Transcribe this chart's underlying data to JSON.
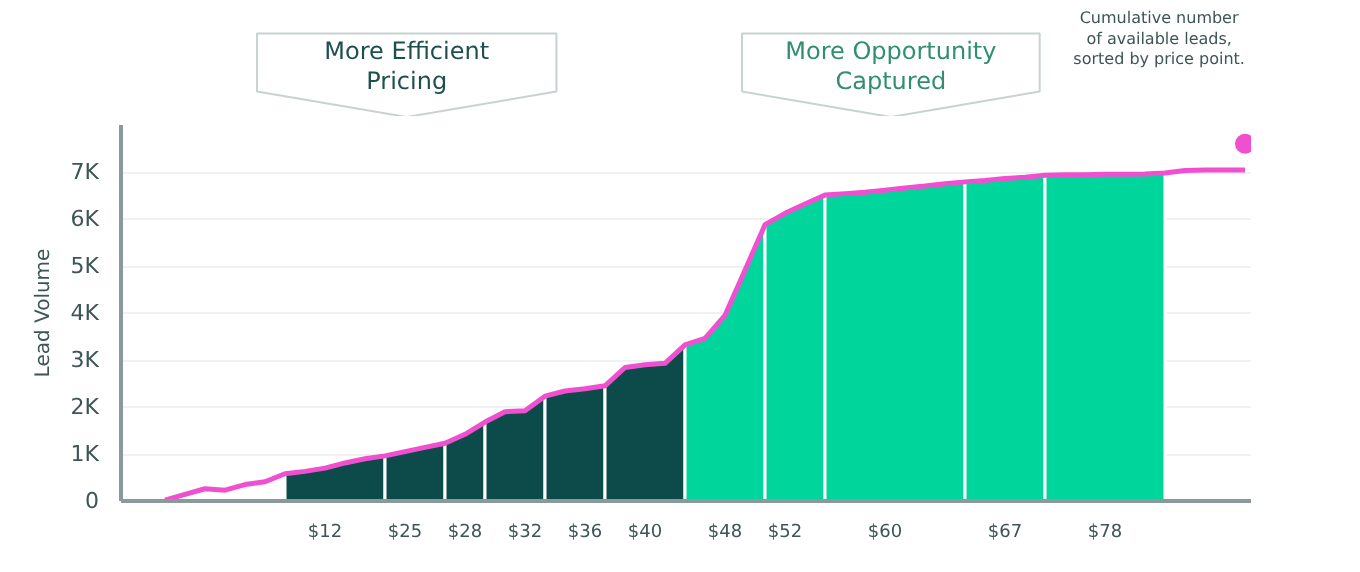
{
  "chart_data": {
    "type": "line",
    "ylabel": "Lead Volume",
    "annotations": [
      "More Efficient\nPricing",
      "More Opportunity\nCaptured",
      "Cumulative number\nof available leads,\nsorted by price point."
    ],
    "categories": [
      null,
      null,
      null,
      null,
      null,
      null,
      null,
      null,
      null,
      null,
      "$12",
      null,
      null,
      null,
      "$25",
      null,
      null,
      "$28",
      null,
      null,
      "$32",
      null,
      null,
      "$36",
      null,
      null,
      "$40",
      null,
      null,
      null,
      "$48",
      null,
      null,
      "$52",
      null,
      null,
      null,
      null,
      "$60",
      null,
      null,
      null,
      null,
      null,
      "$67",
      null,
      null,
      null,
      null,
      "$78",
      null,
      null,
      null,
      null,
      null,
      null,
      null
    ],
    "ylim": [
      0,
      8000
    ],
    "yticks": [
      {
        "value": 0,
        "label": "0"
      },
      {
        "value": 1000,
        "label": "1K"
      },
      {
        "value": 2000,
        "label": "2K"
      },
      {
        "value": 3000,
        "label": "3K"
      },
      {
        "value": 4000,
        "label": "4K"
      },
      {
        "value": 5000,
        "label": "5K"
      },
      {
        "value": 6000,
        "label": "6K"
      },
      {
        "value": 7000,
        "label": "7K"
      }
    ],
    "grid": "y",
    "series": [
      {
        "type": "area",
        "color": "#0d4a4a",
        "values": [
          null,
          null,
          null,
          null,
          null,
          null,
          null,
          null,
          580,
          630,
          700,
          810,
          900,
          960,
          null,
          null,
          null,
          null,
          null,
          null,
          null,
          null,
          null,
          null,
          null,
          null,
          null,
          null,
          null,
          null,
          null,
          null,
          null,
          null,
          null,
          null,
          null,
          null,
          null,
          null,
          null,
          null,
          null,
          null,
          null,
          null,
          null,
          null,
          null,
          null,
          null,
          null,
          null,
          null,
          null,
          null,
          null
        ]
      },
      {
        "type": "area",
        "color": "#0d4a4a",
        "values": [
          null,
          null,
          null,
          null,
          null,
          null,
          null,
          null,
          null,
          null,
          null,
          null,
          null,
          960,
          1050,
          1140,
          1230,
          null,
          null,
          null,
          null,
          null,
          null,
          null,
          null,
          null,
          null,
          null,
          null,
          null,
          null,
          null,
          null,
          null,
          null,
          null,
          null,
          null,
          null,
          null,
          null,
          null,
          null,
          null,
          null,
          null,
          null,
          null,
          null,
          null,
          null,
          null,
          null,
          null,
          null,
          null,
          null
        ]
      },
      {
        "type": "area",
        "color": "#0d4a4a",
        "values": [
          null,
          null,
          null,
          null,
          null,
          null,
          null,
          null,
          null,
          null,
          null,
          null,
          null,
          null,
          null,
          null,
          1230,
          1420,
          1680,
          null,
          null,
          null,
          null,
          null,
          null,
          null,
          null,
          null,
          null,
          null,
          null,
          null,
          null,
          null,
          null,
          null,
          null,
          null,
          null,
          null,
          null,
          null,
          null,
          null,
          null,
          null,
          null,
          null,
          null,
          null,
          null,
          null,
          null,
          null,
          null,
          null,
          null
        ]
      },
      {
        "type": "area",
        "color": "#0d4a4a",
        "values": [
          null,
          null,
          null,
          null,
          null,
          null,
          null,
          null,
          null,
          null,
          null,
          null,
          null,
          null,
          null,
          null,
          null,
          null,
          1680,
          1900,
          1920,
          2230,
          null,
          null,
          null,
          null,
          null,
          null,
          null,
          null,
          null,
          null,
          null,
          null,
          null,
          null,
          null,
          null,
          null,
          null,
          null,
          null,
          null,
          null,
          null,
          null,
          null,
          null,
          null,
          null,
          null,
          null,
          null,
          null,
          null,
          null,
          null
        ]
      },
      {
        "type": "area",
        "color": "#0d4a4a",
        "values": [
          null,
          null,
          null,
          null,
          null,
          null,
          null,
          null,
          null,
          null,
          null,
          null,
          null,
          null,
          null,
          null,
          null,
          null,
          null,
          null,
          null,
          2230,
          2340,
          2390,
          2450,
          null,
          null,
          null,
          null,
          null,
          null,
          null,
          null,
          null,
          null,
          null,
          null,
          null,
          null,
          null,
          null,
          null,
          null,
          null,
          null,
          null,
          null,
          null,
          null,
          null,
          null,
          null,
          null,
          null,
          null,
          null,
          null
        ]
      },
      {
        "type": "area",
        "color": "#0d4a4a",
        "values": [
          null,
          null,
          null,
          null,
          null,
          null,
          null,
          null,
          null,
          null,
          null,
          null,
          null,
          null,
          null,
          null,
          null,
          null,
          null,
          null,
          null,
          null,
          null,
          null,
          2450,
          2840,
          2900,
          2930,
          3320,
          null,
          null,
          null,
          null,
          null,
          null,
          null,
          null,
          null,
          null,
          null,
          null,
          null,
          null,
          null,
          null,
          null,
          null,
          null,
          null,
          null,
          null,
          null,
          null,
          null,
          null,
          null,
          null
        ]
      },
      {
        "type": "area",
        "color": "#00d69b",
        "values": [
          null,
          null,
          null,
          null,
          null,
          null,
          null,
          null,
          null,
          null,
          null,
          null,
          null,
          null,
          null,
          null,
          null,
          null,
          null,
          null,
          null,
          null,
          null,
          null,
          null,
          null,
          null,
          null,
          3320,
          3460,
          3950,
          4910,
          5880,
          null,
          null,
          null,
          null,
          null,
          null,
          null,
          null,
          null,
          null,
          null,
          null,
          null,
          null,
          null,
          null,
          null,
          null,
          null,
          null,
          null,
          null,
          null,
          null
        ]
      },
      {
        "type": "area",
        "color": "#00d69b",
        "values": [
          null,
          null,
          null,
          null,
          null,
          null,
          null,
          null,
          null,
          null,
          null,
          null,
          null,
          null,
          null,
          null,
          null,
          null,
          null,
          null,
          null,
          null,
          null,
          null,
          null,
          null,
          null,
          null,
          null,
          null,
          null,
          null,
          5880,
          6120,
          6320,
          6510,
          null,
          null,
          null,
          null,
          null,
          null,
          null,
          null,
          null,
          null,
          null,
          null,
          null,
          null,
          null,
          null,
          null,
          null,
          null,
          null,
          null
        ]
      },
      {
        "type": "area",
        "color": "#00d69b",
        "values": [
          null,
          null,
          null,
          null,
          null,
          null,
          null,
          null,
          null,
          null,
          null,
          null,
          null,
          null,
          null,
          null,
          null,
          null,
          null,
          null,
          null,
          null,
          null,
          null,
          null,
          null,
          null,
          null,
          null,
          null,
          null,
          null,
          null,
          null,
          null,
          6510,
          6540,
          6570,
          6610,
          6660,
          6700,
          6750,
          6790,
          null,
          null,
          null,
          null,
          null,
          null,
          null,
          null,
          null,
          null,
          null,
          null,
          null,
          null
        ]
      },
      {
        "type": "area",
        "color": "#00d69b",
        "values": [
          null,
          null,
          null,
          null,
          null,
          null,
          null,
          null,
          null,
          null,
          null,
          null,
          null,
          null,
          null,
          null,
          null,
          null,
          null,
          null,
          null,
          null,
          null,
          null,
          null,
          null,
          null,
          null,
          null,
          null,
          null,
          null,
          null,
          null,
          null,
          null,
          null,
          null,
          null,
          null,
          null,
          null,
          6790,
          6820,
          6860,
          6890,
          6930,
          null,
          null,
          null,
          null,
          null,
          null,
          null,
          null,
          null,
          null
        ]
      },
      {
        "type": "area",
        "color": "#00d69b",
        "values": [
          null,
          null,
          null,
          null,
          null,
          null,
          null,
          null,
          null,
          null,
          null,
          null,
          null,
          null,
          null,
          null,
          null,
          null,
          null,
          null,
          null,
          null,
          null,
          null,
          null,
          null,
          null,
          null,
          null,
          null,
          null,
          null,
          null,
          null,
          null,
          null,
          null,
          null,
          null,
          null,
          null,
          null,
          null,
          null,
          null,
          null,
          6930,
          6940,
          6940,
          6950,
          6950,
          6960,
          6980,
          null,
          null,
          null,
          null
        ]
      },
      {
        "color": "#f050d0",
        "line_style": "solid",
        "values": [
          null,
          null,
          20,
          140,
          260,
          230,
          350,
          410,
          580,
          630,
          700,
          810,
          900,
          960,
          1050,
          1140,
          1230,
          1420,
          1680,
          1900,
          1920,
          2230,
          2340,
          2390,
          2450,
          2840,
          2900,
          2930,
          3320,
          3460,
          3950,
          4910,
          5880,
          6120,
          6320,
          6510,
          6540,
          6570,
          6610,
          6660,
          6700,
          6750,
          6790,
          6820,
          6860,
          6890,
          6930,
          6940,
          6940,
          6950,
          6950,
          6960,
          6980,
          7030,
          7040,
          7040,
          7040
        ]
      },
      {
        "type": "scatter",
        "color": "#f050d0",
        "marker": "circle",
        "values": [
          null,
          null,
          null,
          null,
          null,
          null,
          null,
          null,
          null,
          null,
          null,
          null,
          null,
          null,
          null,
          null,
          null,
          null,
          null,
          null,
          null,
          null,
          null,
          null,
          null,
          null,
          null,
          null,
          null,
          null,
          null,
          null,
          null,
          null,
          null,
          null,
          null,
          null,
          null,
          null,
          null,
          null,
          null,
          null,
          null,
          null,
          null,
          null,
          null,
          null,
          null,
          null,
          null,
          null,
          null,
          null,
          7600
        ]
      }
    ]
  }
}
